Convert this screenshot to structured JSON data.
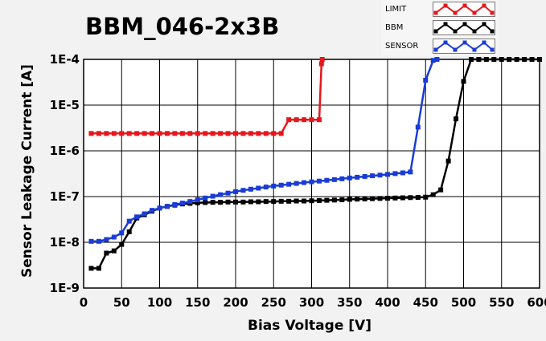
{
  "chart_data": {
    "type": "line",
    "title": "BBM_046-2x3B",
    "xlabel": "Bias Voltage [V]",
    "ylabel": "Sensor Leakage Current [A]",
    "xlim": [
      0,
      600
    ],
    "ylim": [
      1e-09,
      0.0001
    ],
    "yscale": "log",
    "grid": true,
    "legend_position": "top-right",
    "x_ticks": [
      0,
      50,
      100,
      150,
      200,
      250,
      300,
      350,
      400,
      450,
      500,
      550,
      600
    ],
    "x_tick_labels": [
      "0",
      "50",
      "100",
      "150",
      "200",
      "250",
      "300",
      "350",
      "400",
      "450",
      "500",
      "550",
      "600"
    ],
    "y_ticks": [
      1e-09,
      1e-08,
      1e-07,
      1e-06,
      1e-05,
      0.0001
    ],
    "y_tick_labels": [
      "1E-9",
      "1E-8",
      "1E-7",
      "1E-6",
      "1E-5",
      "1E-4"
    ],
    "series": [
      {
        "name": "LIMIT",
        "color": "#e8161b",
        "markers": true,
        "points": [
          [
            10,
            2.4e-06
          ],
          [
            20,
            2.4e-06
          ],
          [
            30,
            2.4e-06
          ],
          [
            40,
            2.4e-06
          ],
          [
            50,
            2.4e-06
          ],
          [
            60,
            2.4e-06
          ],
          [
            70,
            2.4e-06
          ],
          [
            80,
            2.4e-06
          ],
          [
            90,
            2.4e-06
          ],
          [
            100,
            2.4e-06
          ],
          [
            110,
            2.4e-06
          ],
          [
            120,
            2.4e-06
          ],
          [
            130,
            2.4e-06
          ],
          [
            140,
            2.4e-06
          ],
          [
            150,
            2.4e-06
          ],
          [
            160,
            2.4e-06
          ],
          [
            170,
            2.4e-06
          ],
          [
            180,
            2.4e-06
          ],
          [
            190,
            2.4e-06
          ],
          [
            200,
            2.4e-06
          ],
          [
            210,
            2.4e-06
          ],
          [
            220,
            2.4e-06
          ],
          [
            230,
            2.4e-06
          ],
          [
            240,
            2.4e-06
          ],
          [
            250,
            2.4e-06
          ],
          [
            260,
            2.4e-06
          ],
          [
            270,
            4.8e-06
          ],
          [
            280,
            4.8e-06
          ],
          [
            290,
            4.8e-06
          ],
          [
            300,
            4.8e-06
          ],
          [
            310,
            4.8e-06
          ],
          [
            313,
            8e-05
          ],
          [
            314,
            0.0001
          ]
        ]
      },
      {
        "name": "BBM",
        "color": "#000000",
        "markers": true,
        "points": [
          [
            10,
            2.7e-09
          ],
          [
            20,
            2.7e-09
          ],
          [
            30,
            5.8e-09
          ],
          [
            40,
            6.5e-09
          ],
          [
            50,
            9e-09
          ],
          [
            60,
            1.7e-08
          ],
          [
            70,
            3.4e-08
          ],
          [
            80,
            4e-08
          ],
          [
            90,
            4.8e-08
          ],
          [
            100,
            5.6e-08
          ],
          [
            110,
            6.1e-08
          ],
          [
            120,
            6.5e-08
          ],
          [
            130,
            6.9e-08
          ],
          [
            140,
            7.1e-08
          ],
          [
            150,
            7.3e-08
          ],
          [
            160,
            7.4e-08
          ],
          [
            170,
            7.5e-08
          ],
          [
            180,
            7.5e-08
          ],
          [
            190,
            7.6e-08
          ],
          [
            200,
            7.6e-08
          ],
          [
            210,
            7.6e-08
          ],
          [
            220,
            7.7e-08
          ],
          [
            230,
            7.7e-08
          ],
          [
            240,
            7.8e-08
          ],
          [
            250,
            7.8e-08
          ],
          [
            260,
            7.9e-08
          ],
          [
            270,
            7.9e-08
          ],
          [
            280,
            8e-08
          ],
          [
            290,
            8e-08
          ],
          [
            300,
            8.1e-08
          ],
          [
            310,
            8.2e-08
          ],
          [
            320,
            8.3e-08
          ],
          [
            330,
            8.4e-08
          ],
          [
            340,
            8.5e-08
          ],
          [
            350,
            8.7e-08
          ],
          [
            360,
            8.8e-08
          ],
          [
            370,
            8.9e-08
          ],
          [
            380,
            9e-08
          ],
          [
            390,
            9.1e-08
          ],
          [
            400,
            9.2e-08
          ],
          [
            410,
            9.3e-08
          ],
          [
            420,
            9.4e-08
          ],
          [
            430,
            9.5e-08
          ],
          [
            440,
            9.6e-08
          ],
          [
            450,
            9.7e-08
          ],
          [
            460,
            1.1e-07
          ],
          [
            470,
            1.4e-07
          ],
          [
            480,
            6e-07
          ],
          [
            490,
            5e-06
          ],
          [
            500,
            3.3e-05
          ],
          [
            510,
            0.0001
          ],
          [
            520,
            0.0001
          ],
          [
            530,
            0.0001
          ],
          [
            540,
            0.0001
          ],
          [
            550,
            0.0001
          ],
          [
            560,
            0.0001
          ],
          [
            570,
            0.0001
          ],
          [
            580,
            0.0001
          ],
          [
            590,
            0.0001
          ],
          [
            600,
            0.0001
          ]
        ]
      },
      {
        "name": "SENSOR",
        "color": "#1a3cd6",
        "markers": true,
        "points": [
          [
            10,
            1.05e-08
          ],
          [
            20,
            1.05e-08
          ],
          [
            30,
            1.15e-08
          ],
          [
            40,
            1.3e-08
          ],
          [
            50,
            1.6e-08
          ],
          [
            60,
            2.9e-08
          ],
          [
            70,
            3.6e-08
          ],
          [
            80,
            4.2e-08
          ],
          [
            90,
            5e-08
          ],
          [
            100,
            5.6e-08
          ],
          [
            110,
            6.1e-08
          ],
          [
            120,
            6.7e-08
          ],
          [
            130,
            7.2e-08
          ],
          [
            140,
            7.8e-08
          ],
          [
            150,
            8.5e-08
          ],
          [
            160,
            9.3e-08
          ],
          [
            170,
            1.02e-07
          ],
          [
            180,
            1.1e-07
          ],
          [
            190,
            1.19e-07
          ],
          [
            200,
            1.28e-07
          ],
          [
            210,
            1.37e-07
          ],
          [
            220,
            1.45e-07
          ],
          [
            230,
            1.53e-07
          ],
          [
            240,
            1.62e-07
          ],
          [
            250,
            1.7e-07
          ],
          [
            260,
            1.78e-07
          ],
          [
            270,
            1.86e-07
          ],
          [
            280,
            1.94e-07
          ],
          [
            290,
            2.02e-07
          ],
          [
            300,
            2.1e-07
          ],
          [
            310,
            2.18e-07
          ],
          [
            320,
            2.27e-07
          ],
          [
            330,
            2.35e-07
          ],
          [
            340,
            2.45e-07
          ],
          [
            350,
            2.55e-07
          ],
          [
            360,
            2.65e-07
          ],
          [
            370,
            2.75e-07
          ],
          [
            380,
            2.85e-07
          ],
          [
            390,
            2.95e-07
          ],
          [
            400,
            3.05e-07
          ],
          [
            410,
            3.18e-07
          ],
          [
            420,
            3.3e-07
          ],
          [
            430,
            3.45e-07
          ],
          [
            440,
            3.3e-06
          ],
          [
            450,
            3.5e-05
          ],
          [
            460,
            9.5e-05
          ],
          [
            465,
            0.0001
          ]
        ]
      }
    ]
  }
}
